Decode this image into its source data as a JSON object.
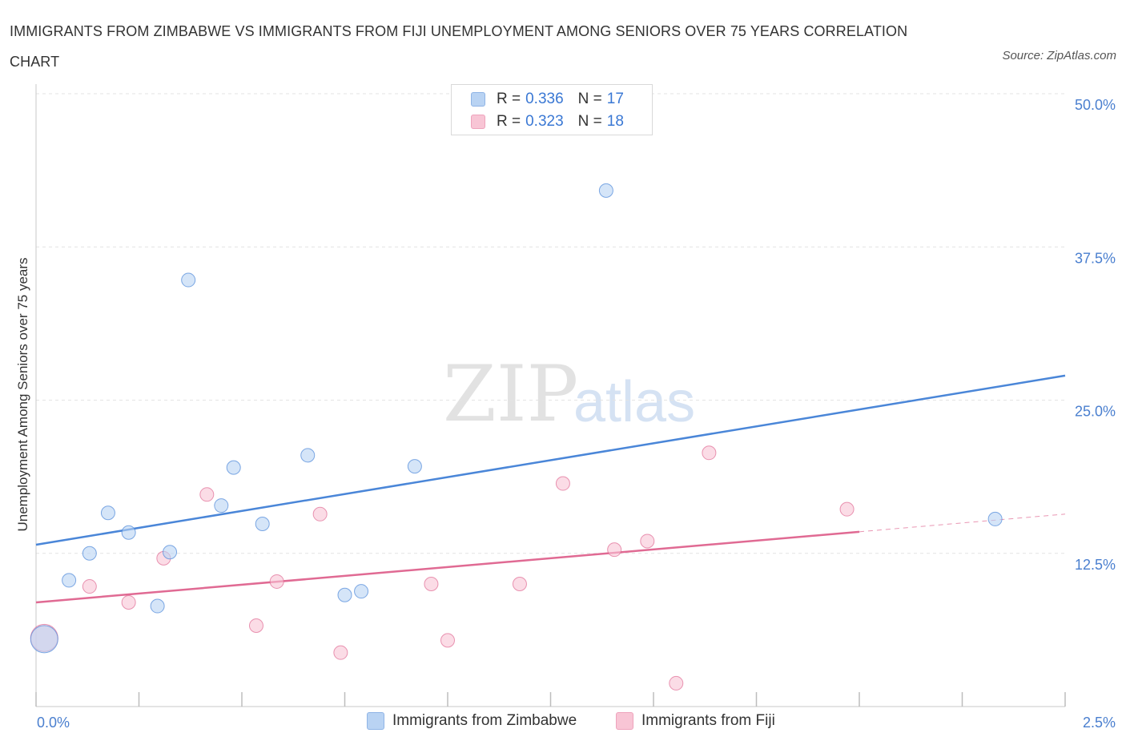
{
  "title": "IMMIGRANTS FROM ZIMBABWE VS IMMIGRANTS FROM FIJI UNEMPLOYMENT AMONG SENIORS OVER 75 YEARS CORRELATION CHART",
  "source": "Source: ZipAtlas.com",
  "watermark": {
    "zip": "ZIP",
    "atlas": "atlas"
  },
  "legend": {
    "rows": [
      {
        "r_label": "R =",
        "r_value": "0.336",
        "n_label": "N =",
        "n_value": "17"
      },
      {
        "r_label": "R =",
        "r_value": "0.323",
        "n_label": "N =",
        "n_value": "18"
      }
    ]
  },
  "chart_data": {
    "type": "scatter",
    "title": "IMMIGRANTS FROM ZIMBABWE VS IMMIGRANTS FROM FIJI UNEMPLOYMENT AMONG SENIORS OVER 75 YEARS CORRELATION CHART",
    "xlabel": "",
    "ylabel": "Unemployment Among Seniors over 75 years",
    "xlim": [
      0,
      2.5
    ],
    "ylim": [
      0,
      50
    ],
    "x_tick_labels": [
      "0.0%",
      "2.5%"
    ],
    "y_ticks": [
      {
        "value": 12.5,
        "label": "12.5%"
      },
      {
        "value": 25.0,
        "label": "25.0%"
      },
      {
        "value": 37.5,
        "label": "37.5%"
      },
      {
        "value": 50.0,
        "label": "50.0%"
      }
    ],
    "grid": true,
    "series": [
      {
        "name": "Immigrants from Zimbabwe",
        "color": "#4a86d8",
        "fill": "#b9d3f3",
        "r": 0.336,
        "n": 17,
        "points": [
          {
            "x": 0.02,
            "y": 5.5,
            "big": true
          },
          {
            "x": 0.08,
            "y": 10.3
          },
          {
            "x": 0.13,
            "y": 12.5
          },
          {
            "x": 0.175,
            "y": 15.8
          },
          {
            "x": 0.225,
            "y": 14.2
          },
          {
            "x": 0.295,
            "y": 8.2
          },
          {
            "x": 0.325,
            "y": 12.6
          },
          {
            "x": 0.37,
            "y": 34.8
          },
          {
            "x": 0.45,
            "y": 16.4
          },
          {
            "x": 0.48,
            "y": 19.5
          },
          {
            "x": 0.55,
            "y": 14.9
          },
          {
            "x": 0.66,
            "y": 20.5
          },
          {
            "x": 0.75,
            "y": 9.1
          },
          {
            "x": 0.79,
            "y": 9.4
          },
          {
            "x": 0.92,
            "y": 19.6
          },
          {
            "x": 1.385,
            "y": 42.1
          },
          {
            "x": 2.33,
            "y": 15.3
          }
        ],
        "trend": {
          "x0": 0.0,
          "y0": 13.2,
          "x1": 2.5,
          "y1": 27.0,
          "dash_from": null
        }
      },
      {
        "name": "Immigrants from Fiji",
        "color": "#e06a93",
        "fill": "#f8c5d5",
        "r": 0.323,
        "n": 18,
        "points": [
          {
            "x": 0.02,
            "y": 5.6,
            "big": true
          },
          {
            "x": 0.13,
            "y": 9.8
          },
          {
            "x": 0.225,
            "y": 8.5
          },
          {
            "x": 0.31,
            "y": 12.1
          },
          {
            "x": 0.415,
            "y": 17.3
          },
          {
            "x": 0.535,
            "y": 6.6
          },
          {
            "x": 0.585,
            "y": 10.2
          },
          {
            "x": 0.69,
            "y": 15.7
          },
          {
            "x": 0.74,
            "y": 4.4
          },
          {
            "x": 0.96,
            "y": 10.0
          },
          {
            "x": 1.0,
            "y": 5.4
          },
          {
            "x": 1.175,
            "y": 10.0
          },
          {
            "x": 1.28,
            "y": 18.2
          },
          {
            "x": 1.405,
            "y": 12.8
          },
          {
            "x": 1.485,
            "y": 13.5
          },
          {
            "x": 1.555,
            "y": 1.9
          },
          {
            "x": 1.635,
            "y": 20.7
          },
          {
            "x": 1.97,
            "y": 16.1
          }
        ],
        "trend": {
          "x0": 0.0,
          "y0": 8.5,
          "x1": 2.5,
          "y1": 15.7,
          "dash_from": 2.0
        }
      }
    ]
  },
  "bottom_legend": {
    "zimbabwe": "Immigrants from Zimbabwe",
    "fiji": "Immigrants from Fiji"
  }
}
